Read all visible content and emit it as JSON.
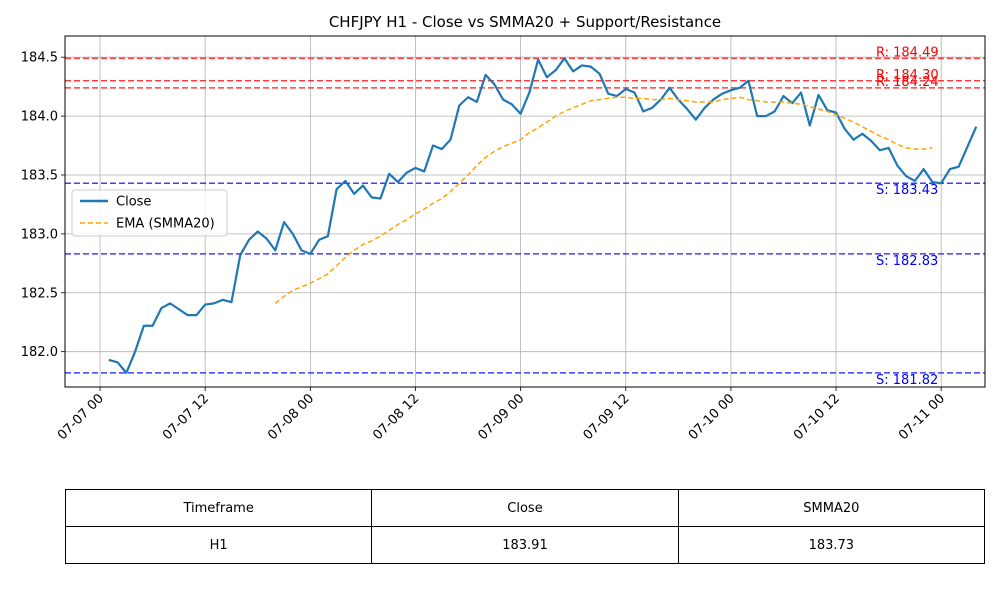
{
  "chart_data": {
    "type": "line",
    "title": "CHFJPY H1 - Close vs SMMA20 + Support/Resistance",
    "xlabel": "",
    "ylabel": "",
    "ylim": [
      181.7,
      184.68
    ],
    "xlim": [
      "2024-07-06 20:00",
      "2024-07-11 05:00"
    ],
    "x_tick_labels": [
      "07-07 00",
      "07-07 12",
      "07-08 00",
      "07-08 12",
      "07-09 00",
      "07-09 12",
      "07-10 00",
      "07-10 12",
      "07-11 00"
    ],
    "x_tick_times": [
      "2024-07-07 00:00",
      "2024-07-07 12:00",
      "2024-07-08 00:00",
      "2024-07-08 12:00",
      "2024-07-09 00:00",
      "2024-07-09 12:00",
      "2024-07-10 00:00",
      "2024-07-10 12:00",
      "2024-07-11 00:00"
    ],
    "y_ticks": [
      "182.0",
      "182.5",
      "183.0",
      "183.5",
      "184.0",
      "184.5"
    ],
    "grid": true,
    "legend": "center-left",
    "series": [
      {
        "name": "Close",
        "color": "#1f77b4",
        "style": "solid",
        "start_time": "2024-07-07 01:00",
        "step_hours": 1,
        "values": [
          181.93,
          181.91,
          181.82,
          182.0,
          182.22,
          182.22,
          182.37,
          182.41,
          182.36,
          182.31,
          182.31,
          182.4,
          182.41,
          182.44,
          182.42,
          182.82,
          182.95,
          183.02,
          182.96,
          182.86,
          183.1,
          183.0,
          182.86,
          182.83,
          182.95,
          182.98,
          183.38,
          183.45,
          183.34,
          183.41,
          183.31,
          183.3,
          183.51,
          183.44,
          183.52,
          183.56,
          183.53,
          183.75,
          183.72,
          183.8,
          184.09,
          184.16,
          184.12,
          184.35,
          184.27,
          184.14,
          184.1,
          184.02,
          184.2,
          184.48,
          184.33,
          184.39,
          184.49,
          184.38,
          184.43,
          184.42,
          184.36,
          184.19,
          184.17,
          184.23,
          184.2,
          184.04,
          184.07,
          184.14,
          184.24,
          184.14,
          184.06,
          183.97,
          184.07,
          184.14,
          184.19,
          184.22,
          184.24,
          184.3,
          184.0,
          184.0,
          184.04,
          184.17,
          184.11,
          184.2,
          183.92,
          184.18,
          184.05,
          184.03,
          183.89,
          183.8,
          183.85,
          183.79,
          183.71,
          183.73,
          183.58,
          183.49,
          183.45,
          183.55,
          183.44,
          183.43,
          183.55,
          183.57,
          183.74,
          183.91
        ]
      },
      {
        "name": "EMA (SMMA20)",
        "color": "#ffa500",
        "style": "dashed",
        "start_time": "2024-07-07 20:00",
        "step_hours": 1,
        "values": [
          182.41,
          182.47,
          182.52,
          182.55,
          182.58,
          182.62,
          182.66,
          182.73,
          182.8,
          182.86,
          182.91,
          182.94,
          182.98,
          183.03,
          183.08,
          183.12,
          183.17,
          183.21,
          183.26,
          183.3,
          183.36,
          183.43,
          183.5,
          183.58,
          183.65,
          183.7,
          183.74,
          183.77,
          183.8,
          183.86,
          183.9,
          183.95,
          184.0,
          184.04,
          184.07,
          184.1,
          184.13,
          184.14,
          184.15,
          184.16,
          184.16,
          184.15,
          184.15,
          184.14,
          184.14,
          184.15,
          184.14,
          184.13,
          184.12,
          184.12,
          184.12,
          184.14,
          184.15,
          184.16,
          184.14,
          184.13,
          184.12,
          184.12,
          184.12,
          184.11,
          184.1,
          184.08,
          184.06,
          184.04,
          184.01,
          183.98,
          183.95,
          183.91,
          183.87,
          183.83,
          183.8,
          183.76,
          183.73,
          183.72,
          183.72,
          183.73
        ]
      }
    ],
    "resistance_levels": [
      184.49,
      184.3,
      184.24
    ],
    "support_levels": [
      183.43,
      182.83,
      181.82
    ],
    "resistance_labels": [
      "R: 184.49",
      "R: 184.30",
      "R: 184.24"
    ],
    "support_labels": [
      "S: 183.43",
      "S: 182.83",
      "S: 181.82"
    ],
    "resistance_color": "#ff0000",
    "support_color": "#0000ff"
  },
  "table": {
    "headers": [
      "Timeframe",
      "Close",
      "SMMA20"
    ],
    "row": [
      "H1",
      "183.91",
      "183.73"
    ]
  }
}
